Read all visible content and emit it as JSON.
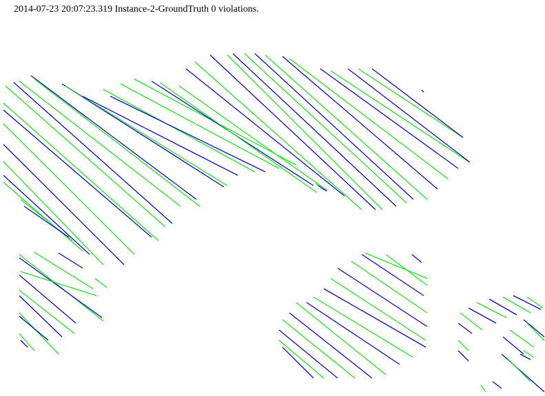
{
  "header": {
    "caption": "2014-07-23 20:07:23.319 Instance-2-GroundTruth 0 violations."
  },
  "colors": {
    "background": "#ffffff",
    "text": "#000000",
    "green_stroke": "#22e022",
    "blue_stroke": "#0a0acc"
  }
}
